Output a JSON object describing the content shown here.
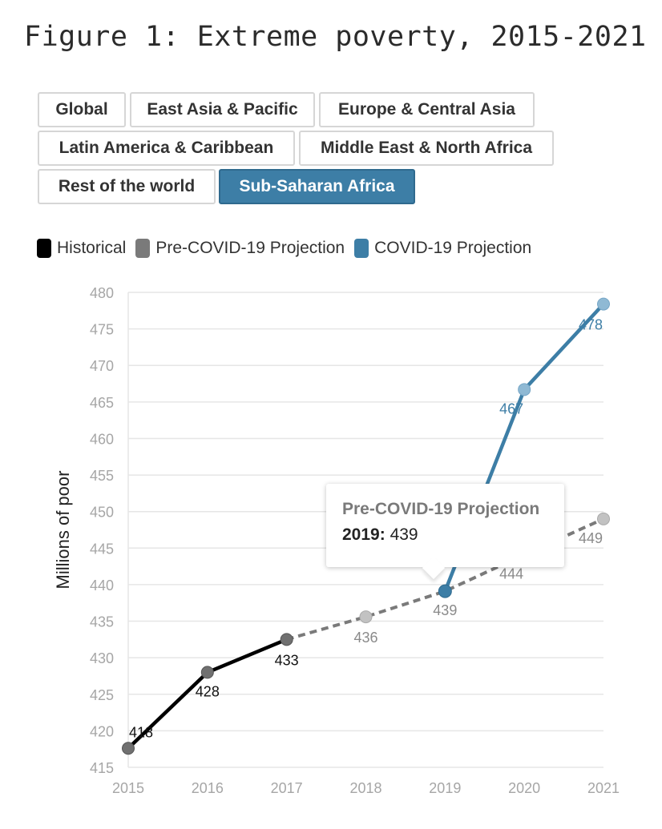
{
  "page": {
    "figure_title": "Figure 1: Extreme poverty, 2015-2021"
  },
  "tabs": [
    {
      "label": "Global",
      "active": false
    },
    {
      "label": "East Asia & Pacific",
      "active": false
    },
    {
      "label": "Europe & Central Asia",
      "active": false
    },
    {
      "label": "Latin America & Caribbean",
      "active": false
    },
    {
      "label": "Middle East & North Africa",
      "active": false
    },
    {
      "label": "Rest of the world",
      "active": false
    },
    {
      "label": "Sub-Saharan Africa",
      "active": true
    }
  ],
  "legend": [
    {
      "label": "Historical",
      "color": "#000000"
    },
    {
      "label": "Pre-COVID-19 Projection",
      "color": "#7a7a7a"
    },
    {
      "label": "COVID-19 Projection",
      "color": "#3d7ea6"
    }
  ],
  "tooltip": {
    "title": "Pre-COVID-19 Projection",
    "year": "2019:",
    "value": "439"
  },
  "chart_data": {
    "type": "line",
    "ylabel": "Millions of poor",
    "xlabel": "",
    "x": [
      2015,
      2016,
      2017,
      2018,
      2019,
      2020,
      2021
    ],
    "ylim": [
      415,
      480
    ],
    "yticks": [
      415,
      420,
      425,
      430,
      435,
      440,
      445,
      450,
      455,
      460,
      465,
      470,
      475,
      480
    ],
    "grid": true,
    "legend_position": "top-left",
    "series": [
      {
        "name": "Historical",
        "color": "#000000",
        "style": "solid",
        "x": [
          2015,
          2016,
          2017
        ],
        "values": [
          417.6,
          428,
          432.5
        ],
        "labels": [
          "418",
          "428",
          "433"
        ]
      },
      {
        "name": "Pre-COVID-19 Projection",
        "color": "#7a7a7a",
        "style": "dashed",
        "x": [
          2017,
          2018,
          2019,
          2020,
          2021
        ],
        "values": [
          432.5,
          435.6,
          439.1,
          444.1,
          449
        ],
        "labels": [
          "",
          "436",
          "439",
          "444",
          "449"
        ]
      },
      {
        "name": "COVID-19 Projection",
        "color": "#3d7ea6",
        "style": "solid",
        "x": [
          2019,
          2020,
          2021
        ],
        "values": [
          439.1,
          466.7,
          478.4
        ],
        "labels": [
          "",
          "467",
          "478"
        ]
      }
    ]
  }
}
